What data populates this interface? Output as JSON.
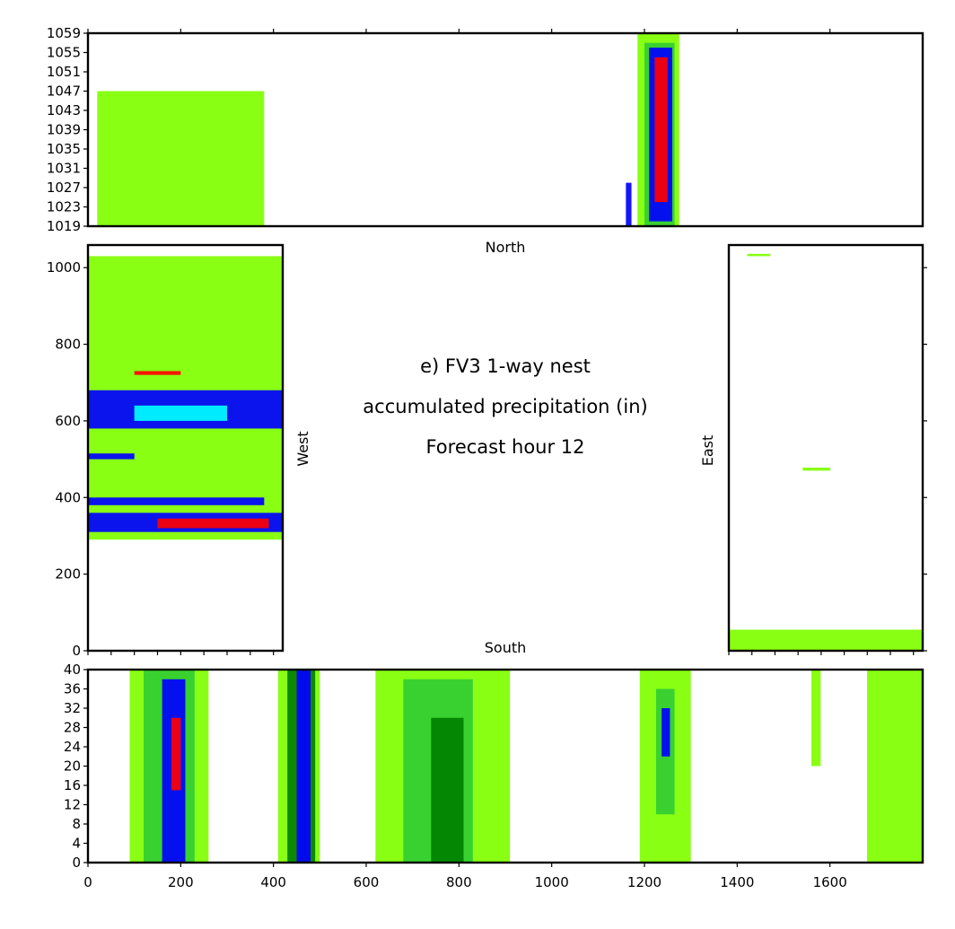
{
  "chart_data": {
    "type": "heatmap",
    "title_lines": [
      "e) FV3 1-way nest",
      "accumulated precipitation (in)",
      "Forecast hour 12"
    ],
    "colors": {
      "light_green": "#7fff00",
      "mid_green": "#32cd32",
      "dark_green": "#008000",
      "blue": "#0000ff",
      "sky": "#1e90ff",
      "cyan": "#00ffff",
      "red": "#ff0000",
      "orange": "#ff8c00",
      "purple": "#800080"
    },
    "panels": {
      "north": {
        "label": "North",
        "xlim": [
          0,
          1800
        ],
        "ylim": [
          1019,
          1059
        ],
        "yticks": [
          1019,
          1023,
          1027,
          1031,
          1035,
          1039,
          1043,
          1047,
          1051,
          1055,
          1059
        ],
        "ytick_labels": [
          "1019",
          "1023",
          "1027",
          "1031",
          "1035",
          "1039",
          "1043",
          "1047",
          "1051",
          "1055",
          "1059"
        ],
        "regions": [
          {
            "x0": 20,
            "x1": 380,
            "y0": 1019,
            "y1": 1047,
            "color": "light_green"
          },
          {
            "x0": 1185,
            "x1": 1275,
            "y0": 1019,
            "y1": 1059,
            "color": "light_green"
          },
          {
            "x0": 1200,
            "x1": 1265,
            "y0": 1019,
            "y1": 1057,
            "color": "mid_green"
          },
          {
            "x0": 1210,
            "x1": 1260,
            "y0": 1020,
            "y1": 1056,
            "color": "blue"
          },
          {
            "x0": 1222,
            "x1": 1250,
            "y0": 1024,
            "y1": 1054,
            "color": "red"
          },
          {
            "x0": 1160,
            "x1": 1172,
            "y0": 1019,
            "y1": 1028,
            "color": "blue"
          }
        ]
      },
      "west": {
        "label": "West",
        "xlim": [
          0,
          420
        ],
        "ylim": [
          0,
          1059
        ],
        "yticks": [
          0,
          200,
          400,
          600,
          800,
          1000
        ],
        "ytick_labels": [
          "0",
          "200",
          "400",
          "600",
          "800",
          "1000"
        ],
        "regions": [
          {
            "x0": 0,
            "x1": 420,
            "y0": 290,
            "y1": 1030,
            "color": "light_green"
          },
          {
            "x0": 0,
            "x1": 420,
            "y0": 310,
            "y1": 360,
            "color": "blue"
          },
          {
            "x0": 150,
            "x1": 390,
            "y0": 320,
            "y1": 345,
            "color": "red"
          },
          {
            "x0": 0,
            "x1": 380,
            "y0": 380,
            "y1": 400,
            "color": "blue"
          },
          {
            "x0": 0,
            "x1": 420,
            "y0": 580,
            "y1": 680,
            "color": "blue"
          },
          {
            "x0": 100,
            "x1": 300,
            "y0": 600,
            "y1": 640,
            "color": "cyan"
          },
          {
            "x0": 0,
            "x1": 100,
            "y0": 500,
            "y1": 515,
            "color": "blue"
          },
          {
            "x0": 100,
            "x1": 200,
            "y0": 720,
            "y1": 730,
            "color": "red"
          }
        ]
      },
      "east": {
        "label": "East",
        "xlim": [
          0,
          420
        ],
        "ylim": [
          0,
          1059
        ],
        "regions": [
          {
            "x0": 0,
            "x1": 420,
            "y0": 0,
            "y1": 55,
            "color": "light_green"
          },
          {
            "x0": 160,
            "x1": 220,
            "y0": 470,
            "y1": 478,
            "color": "light_green"
          },
          {
            "x0": 40,
            "x1": 90,
            "y0": 1030,
            "y1": 1036,
            "color": "light_green"
          }
        ]
      },
      "south": {
        "label": "South",
        "xlim": [
          0,
          1800
        ],
        "ylim": [
          0,
          40
        ],
        "xticks": [
          0,
          200,
          400,
          600,
          800,
          1000,
          1200,
          1400,
          1600
        ],
        "xtick_labels": [
          "0",
          "200",
          "400",
          "600",
          "800",
          "1000",
          "1200",
          "1400",
          "1600"
        ],
        "yticks": [
          0,
          4,
          8,
          12,
          16,
          20,
          24,
          28,
          32,
          36,
          40
        ],
        "ytick_labels": [
          "0",
          "4",
          "8",
          "12",
          "16",
          "20",
          "24",
          "28",
          "32",
          "36",
          "40"
        ],
        "regions": [
          {
            "x0": 90,
            "x1": 260,
            "y0": 0,
            "y1": 40,
            "color": "light_green"
          },
          {
            "x0": 120,
            "x1": 230,
            "y0": 0,
            "y1": 40,
            "color": "mid_green"
          },
          {
            "x0": 160,
            "x1": 210,
            "y0": 0,
            "y1": 38,
            "color": "blue"
          },
          {
            "x0": 180,
            "x1": 200,
            "y0": 15,
            "y1": 30,
            "color": "red"
          },
          {
            "x0": 410,
            "x1": 500,
            "y0": 0,
            "y1": 40,
            "color": "light_green"
          },
          {
            "x0": 430,
            "x1": 490,
            "y0": 0,
            "y1": 40,
            "color": "dark_green"
          },
          {
            "x0": 450,
            "x1": 480,
            "y0": 0,
            "y1": 40,
            "color": "blue"
          },
          {
            "x0": 620,
            "x1": 910,
            "y0": 0,
            "y1": 40,
            "color": "light_green"
          },
          {
            "x0": 680,
            "x1": 830,
            "y0": 0,
            "y1": 38,
            "color": "mid_green"
          },
          {
            "x0": 740,
            "x1": 810,
            "y0": 0,
            "y1": 30,
            "color": "dark_green"
          },
          {
            "x0": 1190,
            "x1": 1300,
            "y0": 0,
            "y1": 40,
            "color": "light_green"
          },
          {
            "x0": 1225,
            "x1": 1265,
            "y0": 10,
            "y1": 36,
            "color": "mid_green"
          },
          {
            "x0": 1237,
            "x1": 1255,
            "y0": 22,
            "y1": 32,
            "color": "blue"
          },
          {
            "x0": 1680,
            "x1": 1800,
            "y0": 0,
            "y1": 40,
            "color": "light_green"
          },
          {
            "x0": 1560,
            "x1": 1580,
            "y0": 20,
            "y1": 40,
            "color": "light_green"
          }
        ]
      }
    }
  }
}
